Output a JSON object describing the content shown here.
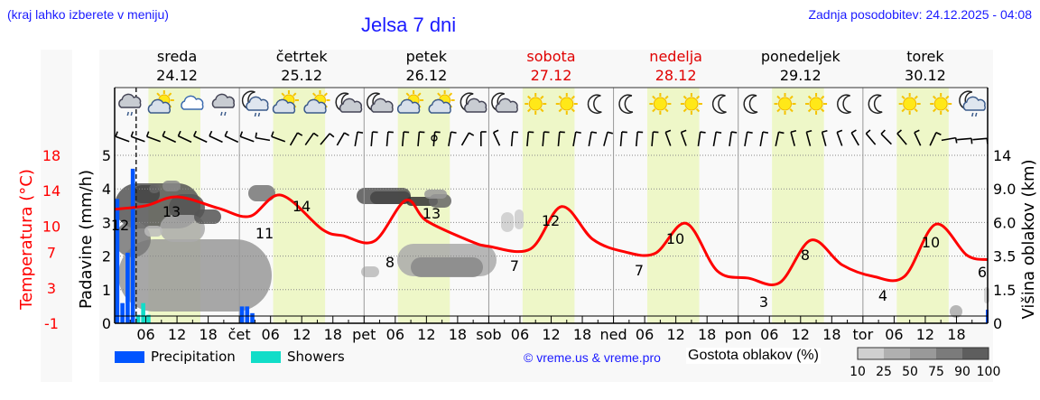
{
  "header": {
    "region_hint": "(kraj lahko izberete v meniju)",
    "title": "Jelsa 7 dni",
    "last_update": "Zadnja posodobitev: 24.12.2025 - 04:08"
  },
  "days": [
    {
      "name": "sreda",
      "date": "24.12",
      "weekend": false
    },
    {
      "name": "četrtek",
      "date": "25.12",
      "weekend": false
    },
    {
      "name": "petek",
      "date": "26.12",
      "weekend": false
    },
    {
      "name": "sobota",
      "date": "27.12",
      "weekend": true
    },
    {
      "name": "nedelja",
      "date": "28.12",
      "weekend": true
    },
    {
      "name": "ponedeljek",
      "date": "29.12",
      "weekend": false
    },
    {
      "name": "torek",
      "date": "30.12",
      "weekend": false
    }
  ],
  "x_axis": {
    "ticks": [
      "06",
      "12",
      "18",
      "čet",
      "06",
      "12",
      "18",
      "pet",
      "06",
      "12",
      "18",
      "sob",
      "06",
      "12",
      "18",
      "ned",
      "06",
      "12",
      "18",
      "pon",
      "06",
      "12",
      "18",
      "tor",
      "06",
      "12",
      "18"
    ]
  },
  "axes": {
    "temperature_label": "Temperatura (°C)",
    "temperature_ticks": [
      "18",
      "14",
      "10",
      "7",
      "3",
      "-1"
    ],
    "precip_label": "Padavine (mm/h)",
    "precip_ticks": [
      "5",
      "4",
      "3",
      "2",
      "1",
      "0"
    ],
    "cloud_height_label": "Višina oblakov (km)",
    "cloud_height_ticks": [
      "14",
      "9.0",
      "6.0",
      "3.5",
      "1.5",
      "0"
    ]
  },
  "legend": {
    "precipitation": "Precipitation",
    "showers": "Showers",
    "credit": "© vreme.us & vreme.pro",
    "cloud_density_title": "Gostota oblakov (%)",
    "cloud_density_ticks": [
      "10",
      "25",
      "50",
      "75",
      "90",
      "100"
    ]
  },
  "colors": {
    "temperature": "#ff0000",
    "precipitation": "#0055ff",
    "showers": "#11ddc8",
    "daylight": "#eef7c8",
    "title_blue": "#1a1aff",
    "weekend_red": "#e00000"
  },
  "weather_icons": [
    "cloud-rain",
    "sun-cloud",
    "cloud",
    "cloud-rain",
    "moon-cloud-rain",
    "sun-cloud",
    "sun-cloud",
    "moon-cloud",
    "moon-cloud",
    "sun-cloud",
    "sun-cloud",
    "moon-cloud",
    "moon-cloud",
    "sun",
    "sun",
    "moon",
    "moon",
    "sun",
    "sun",
    "moon",
    "moon",
    "sun",
    "sun",
    "moon",
    "moon",
    "sun",
    "sun",
    "moon-cloud-rain"
  ],
  "chart_data": {
    "type": "line",
    "title": "Jelsa 7 dni",
    "xlabel": "",
    "ylabel": "Temperatura (°C)",
    "ylim": [
      -1,
      18
    ],
    "x_start": "24.12.2025 00:00",
    "x_hours": 168,
    "series": [
      {
        "name": "Temperature",
        "hours": [
          0,
          6,
          12,
          20,
          26,
          32,
          40,
          44,
          50,
          56,
          60,
          68,
          72,
          80,
          86,
          92,
          98,
          104,
          110,
          116,
          122,
          128,
          134,
          140,
          146,
          152,
          158,
          164,
          168
        ],
        "values": [
          11.9,
          12.3,
          13.3,
          12.0,
          11.1,
          13.5,
          9.6,
          8.9,
          8.3,
          12.9,
          10.6,
          8.4,
          7.7,
          7.4,
          12.2,
          8.5,
          7.1,
          6.9,
          10.3,
          4.9,
          4.1,
          3.6,
          8.4,
          5.6,
          4.3,
          4.3,
          10.2,
          6.7,
          6.2
        ]
      },
      {
        "name": "Precipitation (mm/h)",
        "hours": [
          0.5,
          1.5,
          2.5,
          3.5,
          24.5,
          25.5,
          26.5
        ],
        "values": [
          3.7,
          0.6,
          2.1,
          4.6,
          0.5,
          0.5,
          0.3
        ]
      },
      {
        "name": "Showers (mm/h)",
        "hours": [
          4.5,
          5.5,
          6.5
        ],
        "values": [
          0.25,
          0.6,
          0.25
        ]
      }
    ],
    "annotations": {
      "temp_extremes": [
        {
          "hour": 1,
          "value": 12
        },
        {
          "hour": 11,
          "value": 13
        },
        {
          "hour": 29,
          "value": 11
        },
        {
          "hour": 36,
          "value": 14
        },
        {
          "hour": 52,
          "value": 8
        },
        {
          "hour": 60,
          "value": 13
        },
        {
          "hour": 76,
          "value": 7
        },
        {
          "hour": 84,
          "value": 12
        },
        {
          "hour": 100,
          "value": 7
        },
        {
          "hour": 108,
          "value": 10
        },
        {
          "hour": 124,
          "value": 3
        },
        {
          "hour": 132,
          "value": 8
        },
        {
          "hour": 148,
          "value": 4
        },
        {
          "hour": 156,
          "value": 10
        },
        {
          "hour": 168,
          "value": 6
        }
      ]
    },
    "now_marker_hour": 4.13,
    "grid": true
  }
}
